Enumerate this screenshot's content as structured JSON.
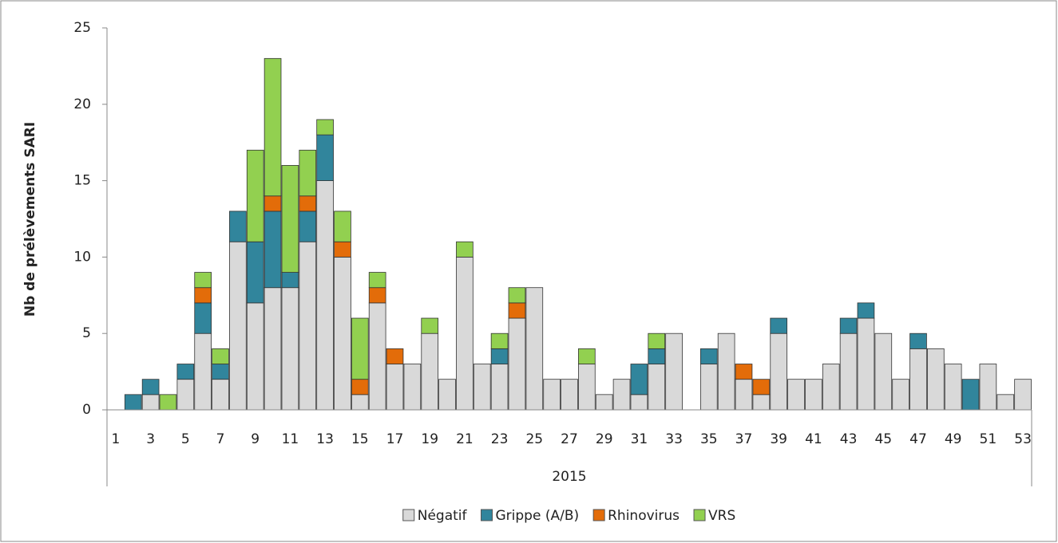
{
  "chart_data": {
    "type": "stacked_bar",
    "ylabel": "Nb de prélèvements SARI",
    "xlabel": "2015",
    "categories": [
      1,
      null,
      3,
      null,
      5,
      null,
      7,
      null,
      9,
      null,
      11,
      null,
      13,
      null,
      15,
      null,
      17,
      null,
      19,
      null,
      21,
      null,
      23,
      null,
      25,
      null,
      27,
      null,
      29,
      null,
      31,
      null,
      33,
      null,
      35,
      null,
      37,
      null,
      39,
      null,
      41,
      null,
      43,
      null,
      45,
      null,
      47,
      null,
      49,
      null,
      51,
      null,
      53
    ],
    "series": [
      {
        "name": "Négatif",
        "color": "#d9d9d9",
        "values": [
          0,
          0,
          1,
          0,
          2,
          5,
          2,
          11,
          7,
          8,
          8,
          11,
          15,
          10,
          1,
          7,
          3,
          3,
          5,
          2,
          10,
          3,
          3,
          6,
          8,
          2,
          2,
          3,
          1,
          2,
          1,
          3,
          5,
          0,
          3,
          5,
          2,
          1,
          5,
          2,
          2,
          3,
          5,
          6,
          5,
          2,
          4,
          4,
          3,
          0,
          3,
          1,
          2
        ]
      },
      {
        "name": "Grippe (A/B)",
        "color": "#31859c",
        "values": [
          0,
          1,
          1,
          0,
          1,
          2,
          1,
          2,
          4,
          5,
          1,
          2,
          3,
          0,
          0,
          0,
          0,
          0,
          0,
          0,
          0,
          0,
          1,
          0,
          0,
          0,
          0,
          0,
          0,
          0,
          2,
          1,
          0,
          0,
          1,
          0,
          0,
          0,
          1,
          0,
          0,
          0,
          1,
          1,
          0,
          0,
          1,
          0,
          0,
          2,
          0,
          0,
          0
        ]
      },
      {
        "name": "Rhinovirus",
        "color": "#e36c09",
        "values": [
          0,
          0,
          0,
          0,
          0,
          1,
          0,
          0,
          0,
          1,
          0,
          1,
          0,
          1,
          1,
          1,
          1,
          0,
          0,
          0,
          0,
          0,
          0,
          1,
          0,
          0,
          0,
          0,
          0,
          0,
          0,
          0,
          0,
          0,
          0,
          0,
          1,
          1,
          0,
          0,
          0,
          0,
          0,
          0,
          0,
          0,
          0,
          0,
          0,
          0,
          0,
          0,
          0
        ]
      },
      {
        "name": "VRS",
        "color": "#92d050",
        "values": [
          0,
          0,
          0,
          1,
          0,
          1,
          1,
          0,
          6,
          9,
          7,
          3,
          1,
          2,
          4,
          1,
          0,
          0,
          1,
          0,
          1,
          0,
          1,
          1,
          0,
          0,
          0,
          1,
          0,
          0,
          0,
          1,
          0,
          0,
          0,
          0,
          0,
          0,
          0,
          0,
          0,
          0,
          0,
          0,
          0,
          0,
          0,
          0,
          0,
          0,
          0,
          0,
          0
        ]
      }
    ],
    "ylim": [
      0,
      25
    ],
    "yticks": [
      0,
      5,
      10,
      15,
      20,
      25
    ],
    "grid": false,
    "legend": "bottom"
  }
}
